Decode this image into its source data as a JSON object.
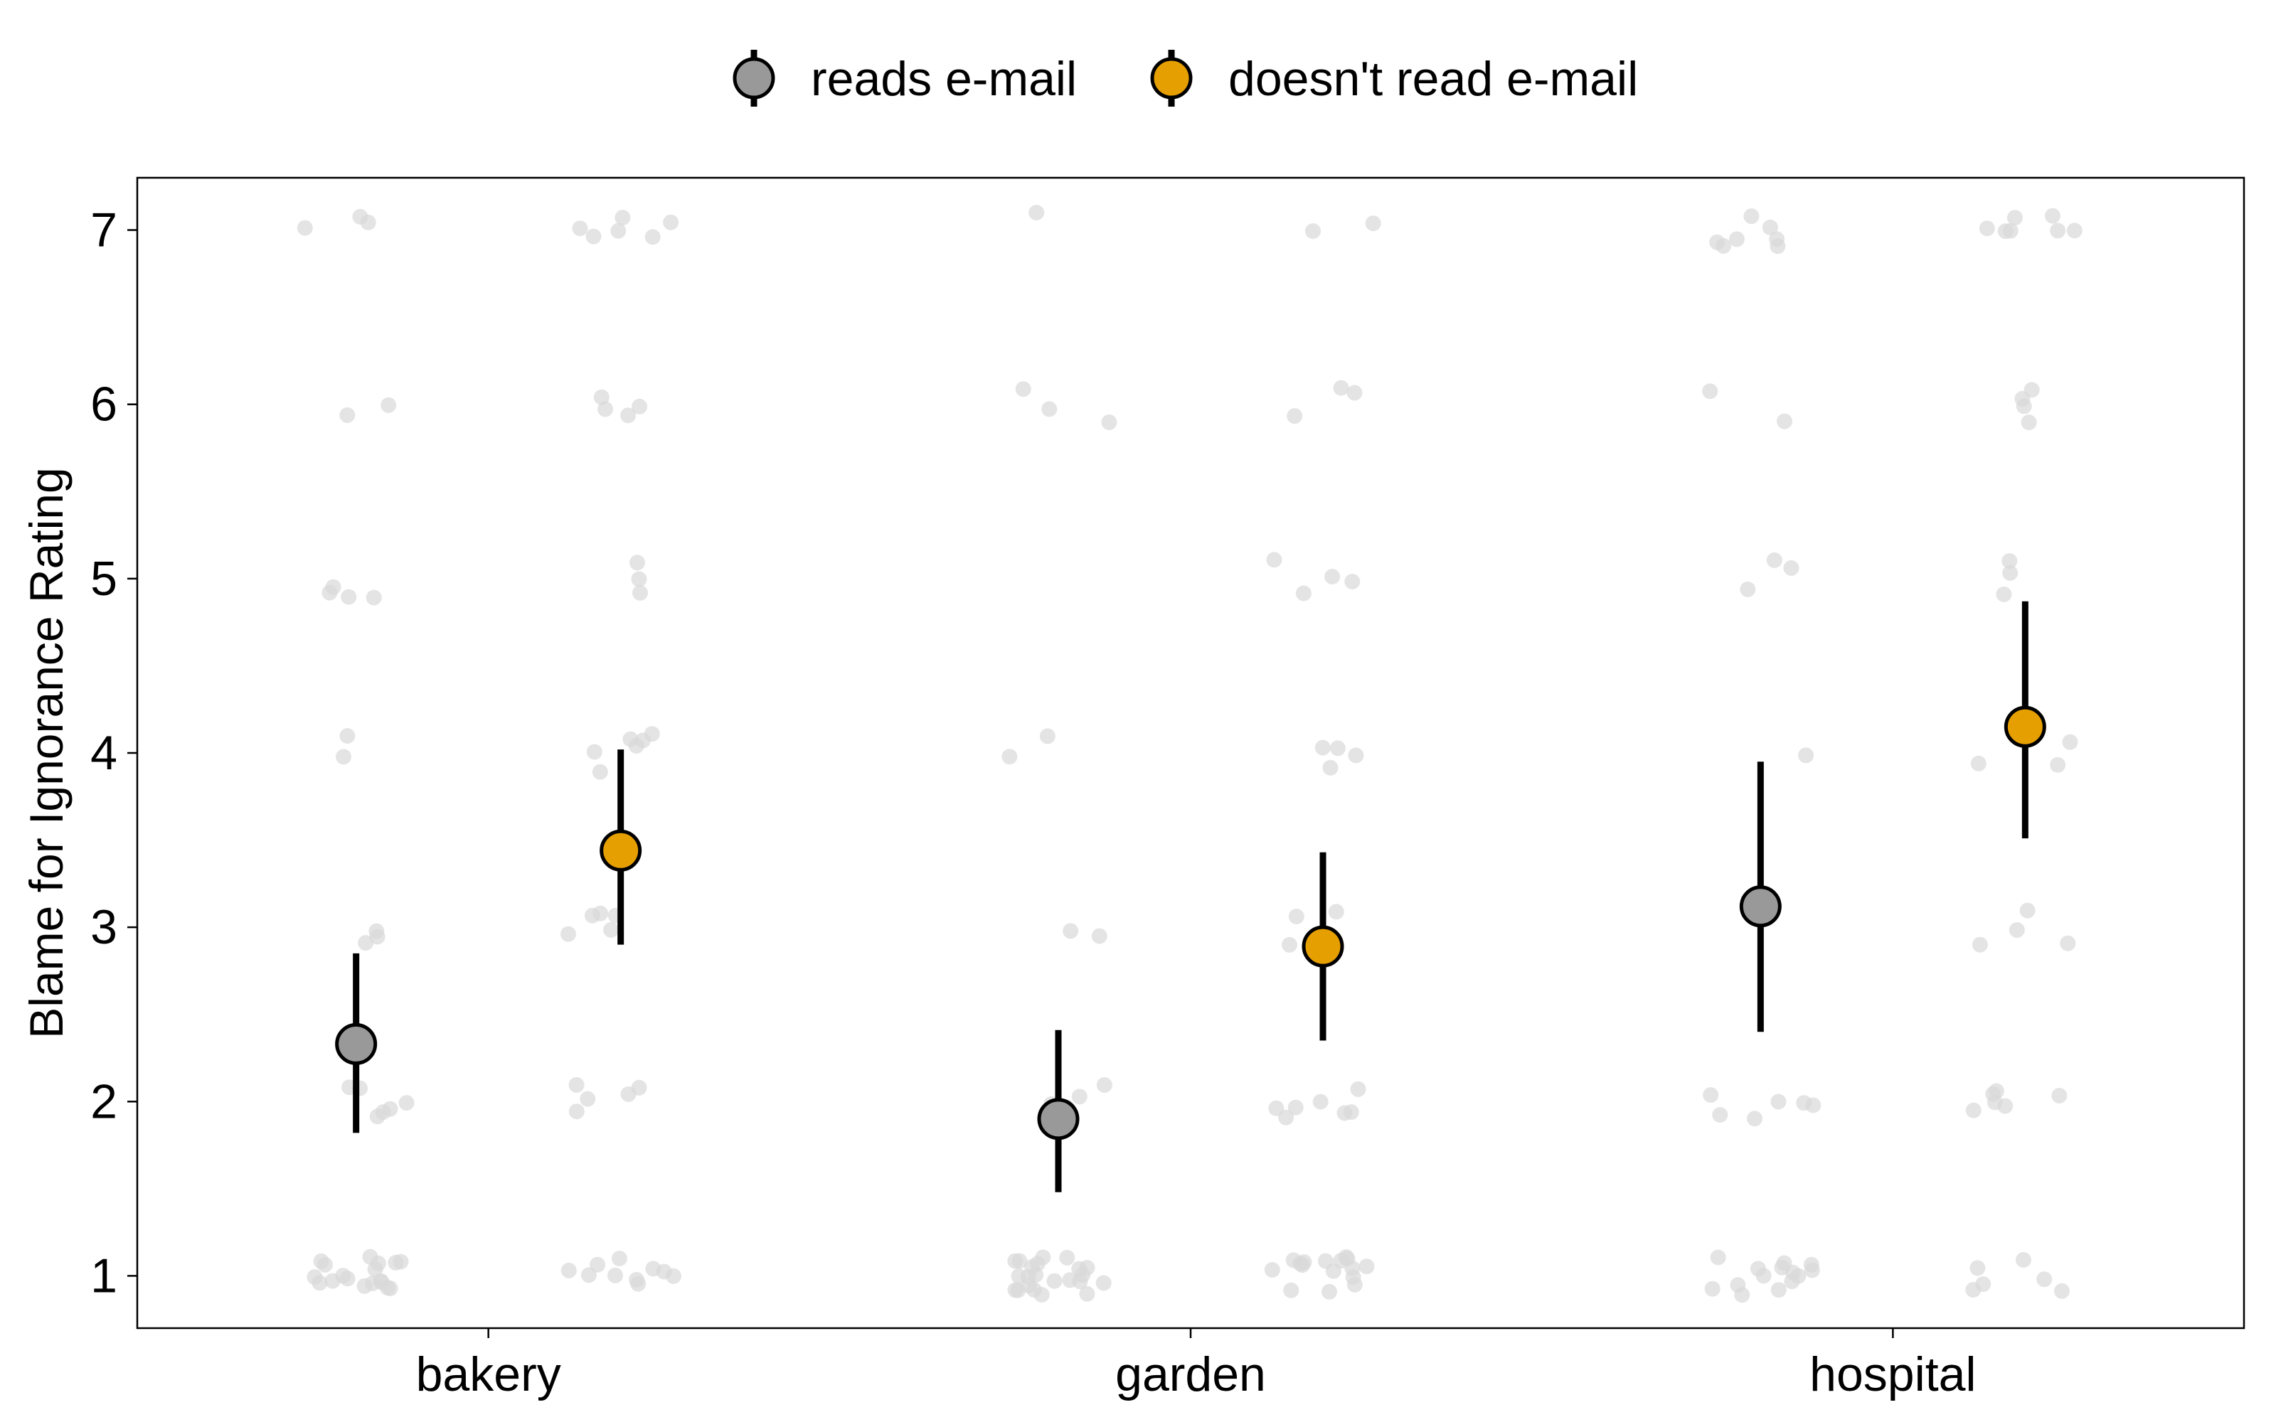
{
  "chart_data": {
    "type": "scatter",
    "ylabel": "Blame for Ignorance Rating",
    "xlabel": "",
    "categories": [
      "bakery",
      "garden",
      "hospital"
    ],
    "ylim": [
      0.7,
      7.3
    ],
    "yticks": [
      1,
      2,
      3,
      4,
      5,
      6,
      7
    ],
    "grid": false,
    "legend_position": "top",
    "series": [
      {
        "name": "reads e-mail",
        "color": "#999999",
        "means": [
          2.33,
          1.9,
          3.12
        ],
        "ci_low": [
          1.82,
          1.48,
          2.4
        ],
        "ci_high": [
          2.85,
          2.41,
          3.95
        ]
      },
      {
        "name": "doesn't read e-mail",
        "color": "#E69F00",
        "means": [
          3.44,
          2.89,
          4.15
        ],
        "ci_low": [
          2.9,
          2.35,
          3.51
        ],
        "ci_high": [
          4.02,
          3.43,
          4.87
        ]
      }
    ],
    "raw_counts": [
      [
        [
          18,
          6,
          3,
          2,
          4,
          2,
          3
        ],
        [
          10,
          5,
          5,
          6,
          3,
          4,
          6
        ]
      ],
      [
        [
          22,
          5,
          2,
          2,
          0,
          3,
          1
        ],
        [
          16,
          7,
          3,
          4,
          4,
          3,
          2
        ]
      ],
      [
        [
          14,
          6,
          0,
          1,
          3,
          2,
          7
        ],
        [
          6,
          6,
          4,
          3,
          3,
          4,
          7
        ]
      ]
    ],
    "raw_point_color": "#d9d9d9"
  }
}
